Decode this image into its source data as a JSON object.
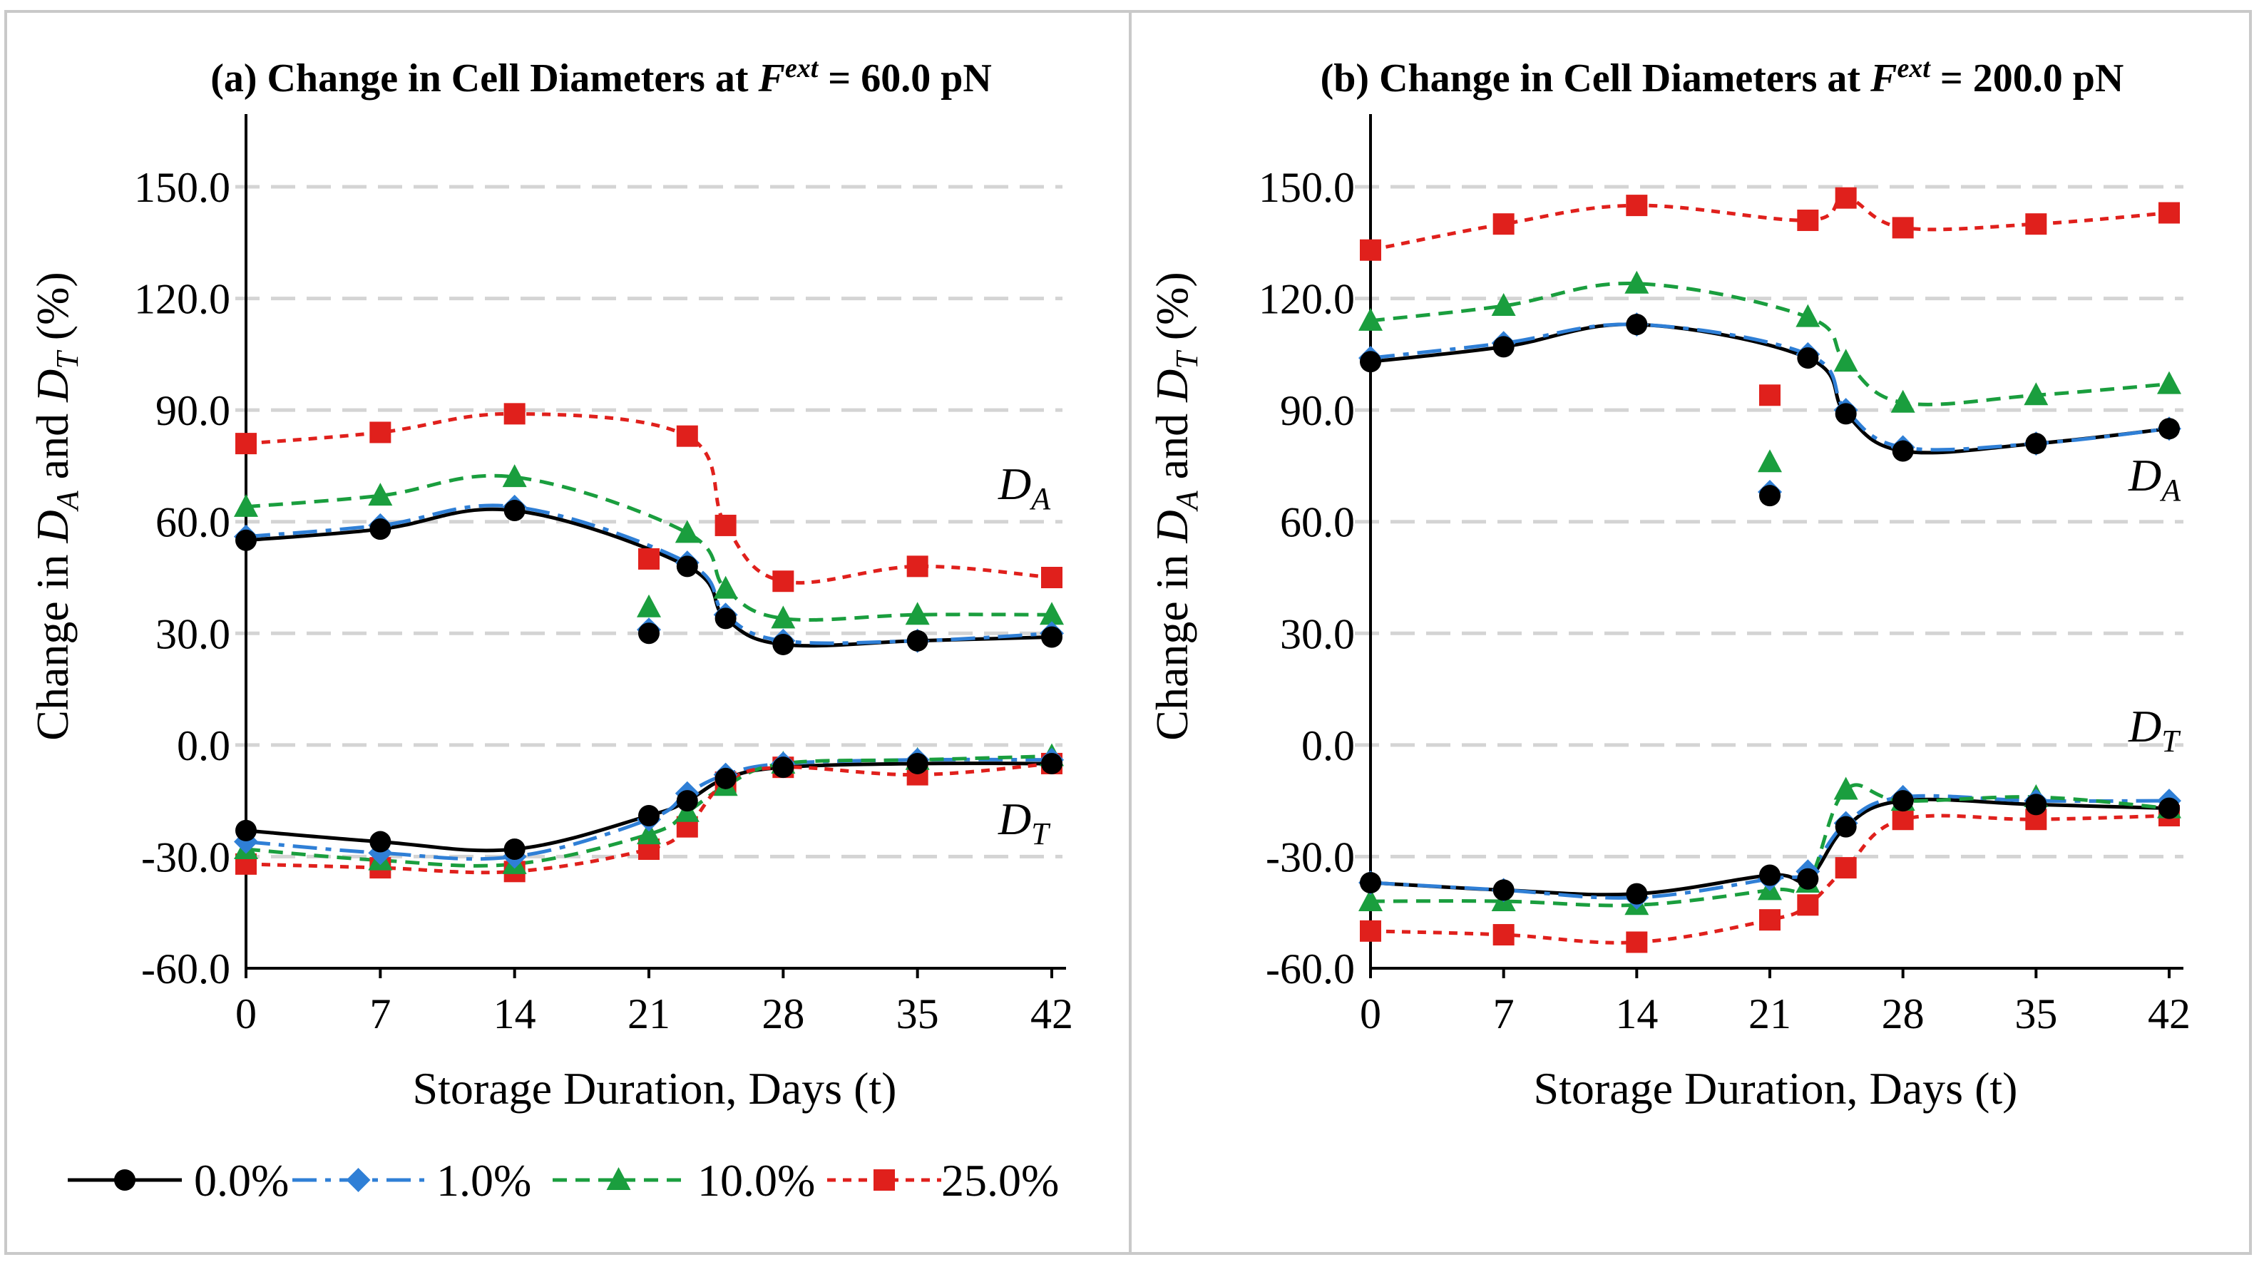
{
  "figure": {
    "legend_entries": [
      {
        "name": "0.0%",
        "color": "#000000",
        "marker": "circle"
      },
      {
        "name": "1.0%",
        "color": "#2f7fd6",
        "marker": "diamond"
      },
      {
        "name": "10.0%",
        "color": "#1a9e3e",
        "marker": "triangle"
      },
      {
        "name": "25.0%",
        "color": "#e0201c",
        "marker": "square"
      }
    ],
    "ylabel_parts": {
      "pre": "Change in ",
      "a": "D",
      "a_sub": "A",
      "mid": " and ",
      "t": "D",
      "t_sub": "T",
      "post": " (%)"
    },
    "xlabel": "Storage Duration, Days (t)"
  },
  "chart_data": [
    {
      "id": "a",
      "type": "scatter",
      "title_pre": "(a) Change in Cell Diameters at ",
      "title_F": "F",
      "title_sup": "ext",
      "title_post": " = 60.0 pN",
      "xlabel": "Storage Duration, Days (t)",
      "ylabel": "Change in D_A and D_T (%)",
      "x_ticks": [
        0,
        7,
        14,
        21,
        28,
        35,
        42
      ],
      "y_ticks": [
        "150.0",
        "120.0",
        "90.0",
        "60.0",
        "30.0",
        "0.0",
        "-30.0",
        "-60.0"
      ],
      "xlim": [
        0,
        42
      ],
      "ylim": [
        -60,
        170
      ],
      "x": [
        0,
        7,
        14,
        21,
        23,
        25,
        28,
        35,
        42
      ],
      "label_DA": "D",
      "label_DA_sub": "A",
      "label_DT": "D",
      "label_DT_sub": "T",
      "series": [
        {
          "name": "0.0%",
          "DA": [
            55,
            58,
            63,
            30,
            48,
            34,
            27,
            28,
            29
          ],
          "DT": [
            -23,
            -26,
            -28,
            -19,
            -15,
            -9,
            -6,
            -5,
            -5
          ]
        },
        {
          "name": "1.0%",
          "DA": [
            56,
            59,
            64,
            31,
            49,
            35,
            28,
            28,
            30
          ],
          "DT": [
            -26,
            -29,
            -30,
            -20,
            -13,
            -8,
            -5,
            -4,
            -4
          ]
        },
        {
          "name": "10.0%",
          "DA": [
            64,
            67,
            72,
            37,
            57,
            42,
            34,
            35,
            35
          ],
          "DT": [
            -28,
            -31,
            -32,
            -24,
            -18,
            -11,
            -5,
            -4,
            -3
          ]
        },
        {
          "name": "25.0%",
          "DA": [
            81,
            84,
            89,
            50,
            83,
            59,
            44,
            48,
            45
          ],
          "DT": [
            -32,
            -33,
            -34,
            -28,
            -22,
            -10,
            -6,
            -8,
            -5
          ]
        }
      ]
    },
    {
      "id": "b",
      "type": "scatter",
      "title_pre": "(b) Change in Cell Diameters at ",
      "title_F": "F",
      "title_sup": "ext",
      "title_post": " = 200.0 pN",
      "xlabel": "Storage Duration, Days (t)",
      "ylabel": "Change in D_A and D_T (%)",
      "x_ticks": [
        0,
        7,
        14,
        21,
        28,
        35,
        42
      ],
      "y_ticks": [
        "150.0",
        "120.0",
        "90.0",
        "60.0",
        "30.0",
        "0.0",
        "-30.0",
        "-60.0"
      ],
      "xlim": [
        0,
        42
      ],
      "ylim": [
        -60,
        170
      ],
      "x": [
        0,
        7,
        14,
        21,
        23,
        25,
        28,
        35,
        42
      ],
      "label_DA": "D",
      "label_DA_sub": "A",
      "label_DT": "D",
      "label_DT_sub": "T",
      "series": [
        {
          "name": "0.0%",
          "DA": [
            103,
            107,
            113,
            67,
            104,
            89,
            79,
            81,
            85
          ],
          "DT": [
            -37,
            -39,
            -40,
            -35,
            -36,
            -22,
            -15,
            -16,
            -17
          ]
        },
        {
          "name": "1.0%",
          "DA": [
            104,
            108,
            113,
            68,
            105,
            90,
            80,
            81,
            85
          ],
          "DT": [
            -37,
            -39,
            -41,
            -36,
            -34,
            -21,
            -14,
            -15,
            -15
          ]
        },
        {
          "name": "10.0%",
          "DA": [
            114,
            118,
            124,
            76,
            115,
            103,
            92,
            94,
            97
          ],
          "DT": [
            -42,
            -42,
            -43,
            -39,
            -37,
            -12,
            -15,
            -14,
            -17
          ]
        },
        {
          "name": "25.0%",
          "DA": [
            133,
            140,
            145,
            94,
            141,
            147,
            139,
            140,
            143
          ],
          "DT": [
            -50,
            -51,
            -53,
            -47,
            -43,
            -33,
            -20,
            -20,
            -19
          ]
        }
      ]
    }
  ]
}
